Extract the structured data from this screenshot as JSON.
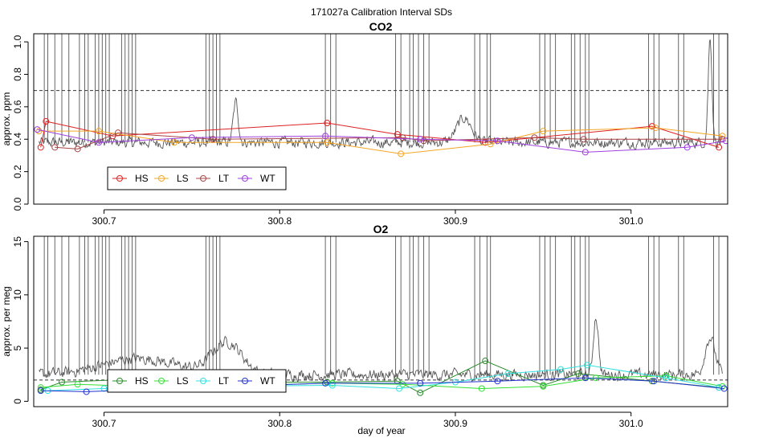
{
  "figure_title": "171027a   Calibration Interval SDs",
  "xlabel": "day of year",
  "chart_data": [
    {
      "type": "line",
      "title": "CO2",
      "ylabel": "approx. ppm",
      "xlim": [
        300.66,
        301.055
      ],
      "ylim": [
        0,
        1.05
      ],
      "x_ticks": [
        300.7,
        300.8,
        300.9,
        301.0
      ],
      "x_tick_labels": [
        "300.7",
        "300.8",
        "300.9",
        "301.0"
      ],
      "y_ticks": [
        0,
        0.2,
        0.4,
        0.6,
        0.8,
        1.0
      ],
      "y_tick_labels": [
        "0.0",
        "0.2",
        "0.4",
        "0.6",
        "0.8",
        "1.0"
      ],
      "threshold": 0.7,
      "background_trace": {
        "color": "#555555",
        "baseline": 0.38,
        "noise": 0.05,
        "bumps": [
          {
            "x": 300.775,
            "height": 0.25,
            "width": 0.002
          },
          {
            "x": 300.905,
            "height": 0.15,
            "width": 0.006
          },
          {
            "x": 301.045,
            "height": 0.65,
            "width": 0.0015
          }
        ],
        "spike_days": [
          300.666,
          300.668,
          300.672,
          300.676,
          300.68,
          300.686,
          300.689,
          300.691,
          300.695,
          300.697,
          300.699,
          300.701,
          300.703,
          300.71,
          300.712,
          300.714,
          300.716,
          300.718,
          300.758,
          300.76,
          300.762,
          300.764,
          300.766,
          300.826,
          300.829,
          300.832,
          300.866,
          300.869,
          300.874,
          300.876,
          300.879,
          300.882,
          300.885,
          300.911,
          300.914,
          300.918,
          300.92,
          300.948,
          300.951,
          300.954,
          300.957,
          300.966,
          300.968,
          300.971,
          300.974,
          300.976,
          301.01,
          301.013,
          301.016,
          301.027,
          301.03,
          301.047,
          301.05
        ]
      },
      "legend_position": "bottom-left",
      "series": [
        {
          "name": "HS",
          "color": "#dd2222",
          "x": [
            300.664,
            300.667,
            300.705,
            300.827,
            300.867,
            300.917,
            301.012,
            301.05
          ],
          "y": [
            0.35,
            0.51,
            0.42,
            0.5,
            0.43,
            0.38,
            0.48,
            0.35
          ]
        },
        {
          "name": "LS",
          "color": "#f5a623",
          "x": [
            300.663,
            300.697,
            300.74,
            300.827,
            300.869,
            300.92,
            300.95,
            301.014,
            301.052
          ],
          "y": [
            0.45,
            0.45,
            0.38,
            0.38,
            0.31,
            0.37,
            0.45,
            0.47,
            0.42
          ]
        },
        {
          "name": "LT",
          "color": "#aa4444",
          "x": [
            300.672,
            300.685,
            300.708,
            300.762,
            300.87,
            300.882,
            300.945,
            300.973,
            301.052
          ],
          "y": [
            0.35,
            0.34,
            0.44,
            0.4,
            0.41,
            0.39,
            0.41,
            0.4,
            0.4
          ]
        },
        {
          "name": "WT",
          "color": "#a040e0",
          "x": [
            300.662,
            300.697,
            300.75,
            300.826,
            300.88,
            300.924,
            300.974,
            301.032,
            301.054
          ],
          "y": [
            0.46,
            0.38,
            0.41,
            0.42,
            0.4,
            0.39,
            0.32,
            0.35,
            0.39
          ]
        }
      ]
    },
    {
      "type": "line",
      "title": "O2",
      "ylabel": "approx. per meg",
      "xlim": [
        300.66,
        301.055
      ],
      "ylim": [
        -0.5,
        15.5
      ],
      "x_ticks": [
        300.7,
        300.8,
        300.9,
        301.0
      ],
      "x_tick_labels": [
        "300.7",
        "300.8",
        "300.9",
        "301.0"
      ],
      "y_ticks": [
        0,
        5,
        10,
        15
      ],
      "y_tick_labels": [
        "0",
        "5",
        "10",
        "15"
      ],
      "threshold": 2,
      "background_trace": {
        "color": "#555555",
        "baseline": 2.5,
        "noise": 0.8,
        "bumps": [
          {
            "x": 300.72,
            "height": 1.5,
            "width": 0.03
          },
          {
            "x": 300.77,
            "height": 3.0,
            "width": 0.012
          },
          {
            "x": 300.98,
            "height": 5.5,
            "width": 0.002
          },
          {
            "x": 301.045,
            "height": 3.5,
            "width": 0.004
          }
        ],
        "spike_days": [
          300.666,
          300.668,
          300.672,
          300.676,
          300.68,
          300.686,
          300.689,
          300.691,
          300.695,
          300.697,
          300.699,
          300.701,
          300.703,
          300.71,
          300.712,
          300.714,
          300.716,
          300.718,
          300.758,
          300.76,
          300.762,
          300.764,
          300.766,
          300.826,
          300.829,
          300.832,
          300.866,
          300.869,
          300.874,
          300.876,
          300.879,
          300.882,
          300.885,
          300.911,
          300.914,
          300.918,
          300.92,
          300.948,
          300.951,
          300.954,
          300.957,
          300.966,
          300.968,
          300.971,
          300.974,
          300.976,
          301.01,
          301.013,
          301.016,
          301.027,
          301.03,
          301.047,
          301.05
        ]
      },
      "legend_position": "bottom-left",
      "series": [
        {
          "name": "HS",
          "color": "#2e8b2e",
          "x": [
            300.664,
            300.676,
            300.705,
            300.77,
            300.827,
            300.867,
            300.88,
            300.917,
            300.95,
            300.97,
            301.012,
            301.05
          ],
          "y": [
            1.1,
            1.8,
            2.0,
            1.8,
            1.8,
            1.9,
            0.8,
            3.8,
            1.5,
            2.6,
            1.9,
            1.3
          ]
        },
        {
          "name": "LS",
          "color": "#33e033",
          "x": [
            300.664,
            300.685,
            300.72,
            300.78,
            300.83,
            300.87,
            300.915,
            300.95,
            300.98,
            301.02,
            301.052
          ],
          "y": [
            1.3,
            1.6,
            1.4,
            1.5,
            1.7,
            1.6,
            1.2,
            1.4,
            2.2,
            2.4,
            1.4
          ]
        },
        {
          "name": "LT",
          "color": "#33e0e0",
          "x": [
            300.668,
            300.7,
            300.76,
            300.83,
            300.868,
            300.9,
            300.93,
            300.96,
            300.975,
            301.02,
            301.05
          ],
          "y": [
            1.0,
            1.2,
            1.4,
            1.5,
            1.2,
            1.8,
            2.6,
            3.0,
            3.4,
            2.2,
            1.3
          ]
        },
        {
          "name": "WT",
          "color": "#2233cc",
          "x": [
            300.664,
            300.69,
            300.75,
            300.826,
            300.88,
            300.924,
            300.974,
            301.013,
            301.053
          ],
          "y": [
            1.0,
            0.9,
            1.3,
            1.7,
            1.7,
            1.9,
            2.2,
            1.9,
            1.2
          ]
        }
      ]
    }
  ]
}
